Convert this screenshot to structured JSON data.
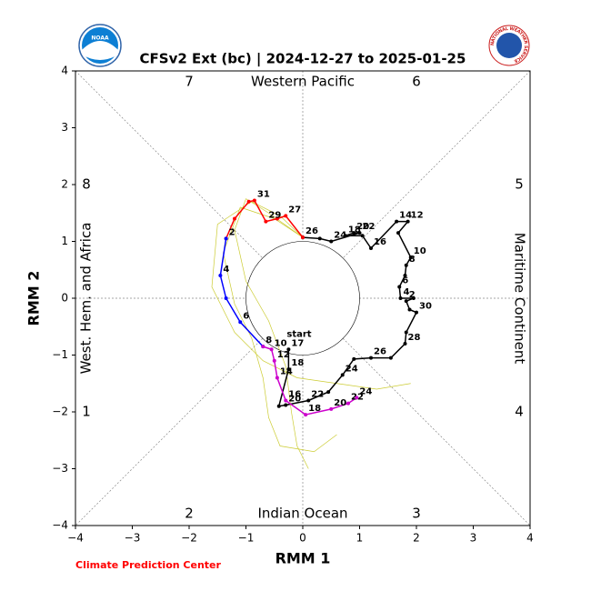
{
  "chart_data": {
    "type": "line",
    "title": "CFSv2 Ext (bc) | 2024-12-27 to 2025-01-25",
    "x_label": "RMM 1",
    "y_label": "RMM 2",
    "footer": "Climate Prediction Center",
    "noaa_logo_text": "NOAA",
    "nws_logo_text": "NATIONAL WEATHER SERVICE",
    "start_label": "start",
    "phase_labels": [
      "1",
      "2",
      "3",
      "4",
      "5",
      "6",
      "7",
      "8"
    ],
    "region_labels": [
      "Western Pacific",
      "Maritime Continent",
      "Indian Ocean",
      "West. Hem. and Africa"
    ],
    "xlim": [
      -4,
      4
    ],
    "ylim": [
      -4,
      4
    ],
    "xticks": [
      {
        "value": -4,
        "label": "−4"
      },
      {
        "value": -3,
        "label": "−3"
      },
      {
        "value": -2,
        "label": "−2"
      },
      {
        "value": -1,
        "label": "−1"
      },
      0,
      1,
      2,
      3,
      4
    ],
    "yticks": [
      {
        "value": -4,
        "label": "−4"
      },
      {
        "value": -3,
        "label": "−3"
      },
      {
        "value": -2,
        "label": "−2"
      },
      {
        "value": -1,
        "label": "−1"
      },
      0,
      1,
      2,
      3,
      4
    ],
    "series": [
      {
        "color": "#cccc33",
        "x": [
          0.0,
          -0.6,
          -1.0,
          -1.2,
          -1.0,
          -0.6,
          -0.3,
          -0.2,
          -0.1,
          0.1
        ],
        "y": [
          1.07,
          1.5,
          1.75,
          1.2,
          0.3,
          -0.4,
          -1.2,
          -2.0,
          -2.6,
          -3.0
        ]
      },
      {
        "color": "#cccc33",
        "x": [
          0.0,
          -0.4,
          -0.9,
          -1.5,
          -1.6,
          -1.2,
          -0.7,
          -0.1,
          0.6,
          1.3,
          1.9
        ],
        "y": [
          1.07,
          1.45,
          1.7,
          1.3,
          0.2,
          -0.6,
          -1.1,
          -1.4,
          -1.5,
          -1.6,
          -1.5
        ]
      },
      {
        "color": "#cccc33",
        "x": [
          0.0,
          -0.5,
          -1.1,
          -1.4,
          -1.2,
          -0.9,
          -0.7,
          -0.6,
          -0.4,
          0.2,
          0.6
        ],
        "y": [
          1.07,
          1.4,
          1.6,
          0.8,
          -0.1,
          -0.7,
          -1.4,
          -2.1,
          -2.6,
          -2.7,
          -2.4
        ]
      },
      {
        "color": "#000000",
        "x": [
          -0.25,
          -0.25,
          -0.42,
          -0.3,
          0.1,
          0.45,
          0.7,
          0.9,
          1.2,
          1.55,
          1.8,
          1.82,
          2.0,
          1.88,
          1.82,
          1.95,
          1.72,
          1.7,
          1.8,
          1.82,
          1.9,
          1.68,
          1.85,
          1.65,
          1.2,
          1.05,
          0.75,
          0.9,
          1.0,
          0.5,
          0.3,
          0.0
        ],
        "y": [
          -0.9,
          -1.25,
          -1.9,
          -1.88,
          -1.8,
          -1.65,
          -1.35,
          -1.07,
          -1.05,
          -1.05,
          -0.8,
          -0.6,
          -0.25,
          -0.2,
          -0.05,
          0.0,
          0.0,
          0.2,
          0.4,
          0.58,
          0.72,
          1.15,
          1.35,
          1.35,
          0.88,
          1.1,
          1.1,
          1.15,
          1.15,
          1.0,
          1.05,
          1.07
        ],
        "point_labels": [
          "17",
          "18",
          null,
          "20",
          "22",
          null,
          "24",
          null,
          "26",
          null,
          "28",
          null,
          "30",
          null,
          "2",
          null,
          "4",
          "6",
          null,
          "8",
          "10",
          null,
          "12",
          "14",
          "16",
          null,
          "18",
          "20",
          "22",
          "24",
          null,
          "26"
        ]
      },
      {
        "color": "#ff0000",
        "x": [
          0.0,
          -0.3,
          -0.45,
          -0.65,
          -0.85,
          -0.95,
          -1.2,
          -1.35
        ],
        "y": [
          1.07,
          1.45,
          1.4,
          1.35,
          1.72,
          1.7,
          1.4,
          1.05
        ],
        "point_labels": [
          null,
          "27",
          null,
          "29",
          "31",
          null,
          null,
          "2"
        ]
      },
      {
        "color": "#0000ff",
        "x": [
          -1.35,
          -1.45,
          -1.35,
          -1.1,
          -0.7
        ],
        "y": [
          1.05,
          0.4,
          0.0,
          -0.42,
          -0.85
        ],
        "point_labels": [
          null,
          "4",
          null,
          "6",
          "8"
        ]
      },
      {
        "color": "#cc00cc",
        "x": [
          -0.7,
          -0.55,
          -0.5,
          -0.45,
          -0.3,
          0.05,
          0.5,
          0.8,
          0.95
        ],
        "y": [
          -0.85,
          -0.9,
          -1.1,
          -1.4,
          -1.8,
          -2.05,
          -1.95,
          -1.85,
          -1.75
        ],
        "point_labels": [
          null,
          "10",
          "12",
          "14",
          "16",
          "18",
          "20",
          "22",
          "24"
        ]
      }
    ]
  }
}
